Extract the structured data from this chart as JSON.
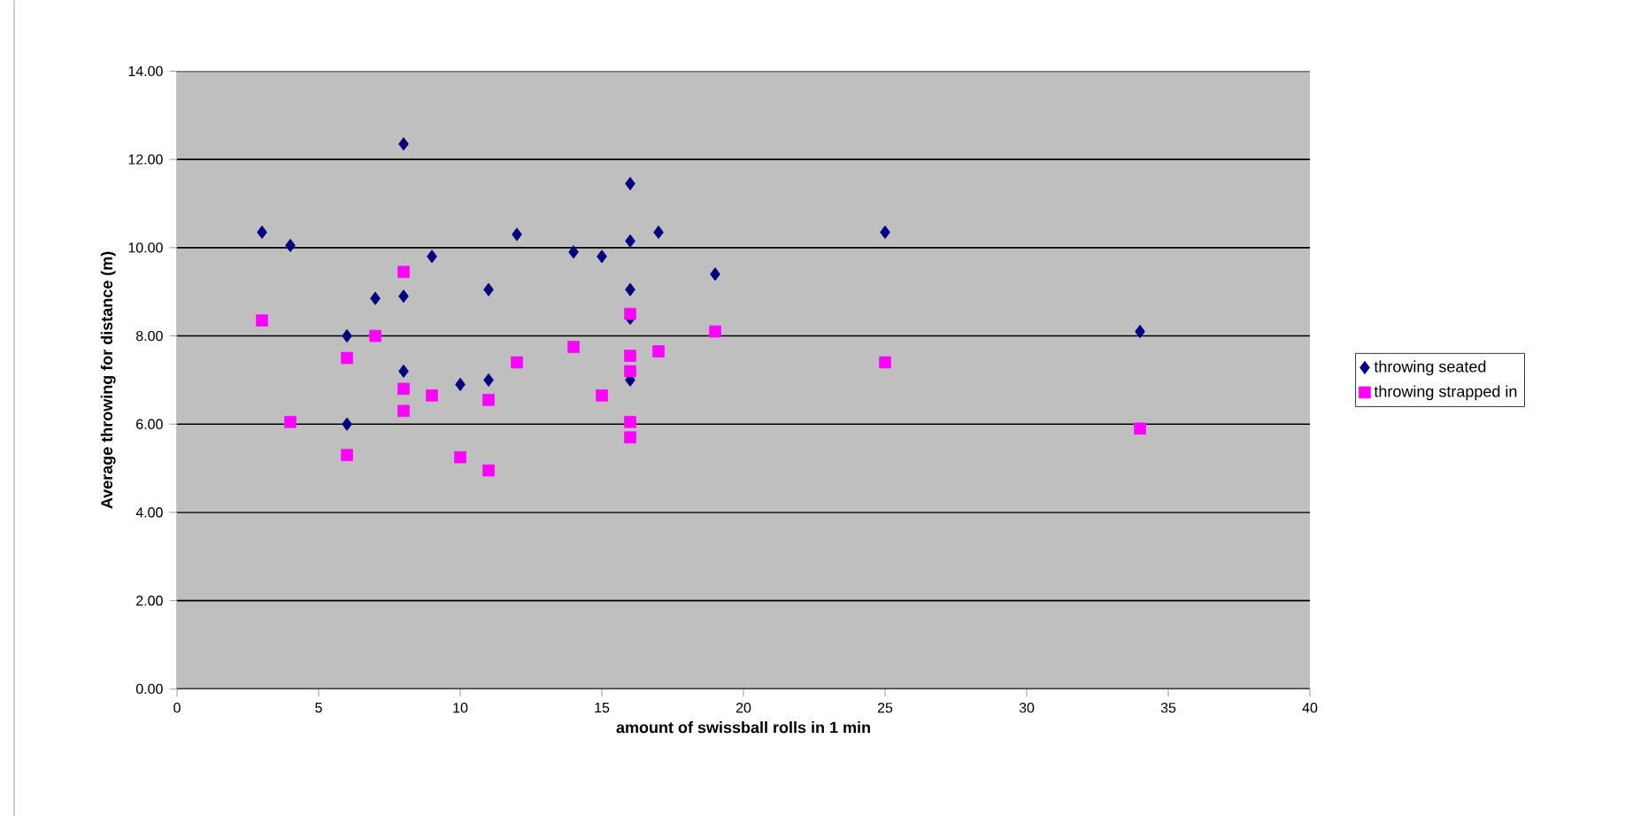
{
  "chart_data": {
    "type": "scatter",
    "xlabel": "amount of swissball rolls in 1 min",
    "ylabel": "Average throwing for distance (m)",
    "xlim": [
      0,
      40
    ],
    "xticks": [
      0,
      5,
      10,
      15,
      20,
      25,
      30,
      35,
      40
    ],
    "ylim": [
      0,
      14
    ],
    "yticks": [
      {
        "value": 0,
        "label": "0.00"
      },
      {
        "value": 2,
        "label": "2.00"
      },
      {
        "value": 4,
        "label": "4.00"
      },
      {
        "value": 6,
        "label": "6.00"
      },
      {
        "value": 8,
        "label": "8.00"
      },
      {
        "value": 10,
        "label": "10.00"
      },
      {
        "value": 12,
        "label": "12.00"
      },
      {
        "value": 14,
        "label": "14.00"
      }
    ],
    "grid": "y",
    "legend": "right",
    "series": [
      {
        "name": "throwing seated",
        "color": "#000080",
        "marker": "diamond",
        "x": [
          3,
          4,
          6,
          6,
          7,
          8,
          8,
          8,
          9,
          10,
          11,
          11,
          12,
          14,
          15,
          16,
          16,
          16,
          16,
          16,
          17,
          19,
          25,
          34
        ],
        "values": [
          10.35,
          10.05,
          8.0,
          6.0,
          8.85,
          12.35,
          8.9,
          7.2,
          9.8,
          6.9,
          9.05,
          7.0,
          10.3,
          9.9,
          9.8,
          11.45,
          10.15,
          9.05,
          8.4,
          7.0,
          10.35,
          9.4,
          10.35,
          8.1
        ]
      },
      {
        "name": "throwing strapped in",
        "color": "#ff00ff",
        "marker": "square",
        "x": [
          3,
          4,
          6,
          6,
          7,
          8,
          8,
          8,
          9,
          10,
          11,
          11,
          12,
          14,
          15,
          16,
          16,
          16,
          16,
          16,
          17,
          19,
          25,
          34
        ],
        "values": [
          8.35,
          6.05,
          7.5,
          5.3,
          8.0,
          9.45,
          6.8,
          6.3,
          6.65,
          5.25,
          6.55,
          4.95,
          7.4,
          7.75,
          6.65,
          8.5,
          7.55,
          7.2,
          6.05,
          5.7,
          7.65,
          8.1,
          7.4,
          5.9
        ]
      }
    ]
  }
}
